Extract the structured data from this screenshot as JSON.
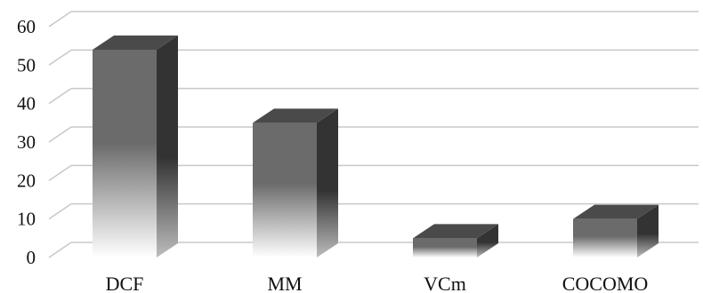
{
  "chart_data": {
    "type": "bar",
    "categories": [
      "DCF",
      "MM",
      "VCm",
      "COCOMO"
    ],
    "values": [
      54,
      35,
      5,
      10
    ],
    "ylim": [
      0,
      60
    ],
    "yticks": [
      0,
      10,
      20,
      30,
      40,
      50,
      60
    ],
    "grid": true,
    "legend": "none",
    "style": "3d-column",
    "colors": {
      "bar_front": "#6b6b6b",
      "bar_side": "#333333",
      "bar_top": "#4a4a4a",
      "grid": "#c8c8c8"
    }
  }
}
